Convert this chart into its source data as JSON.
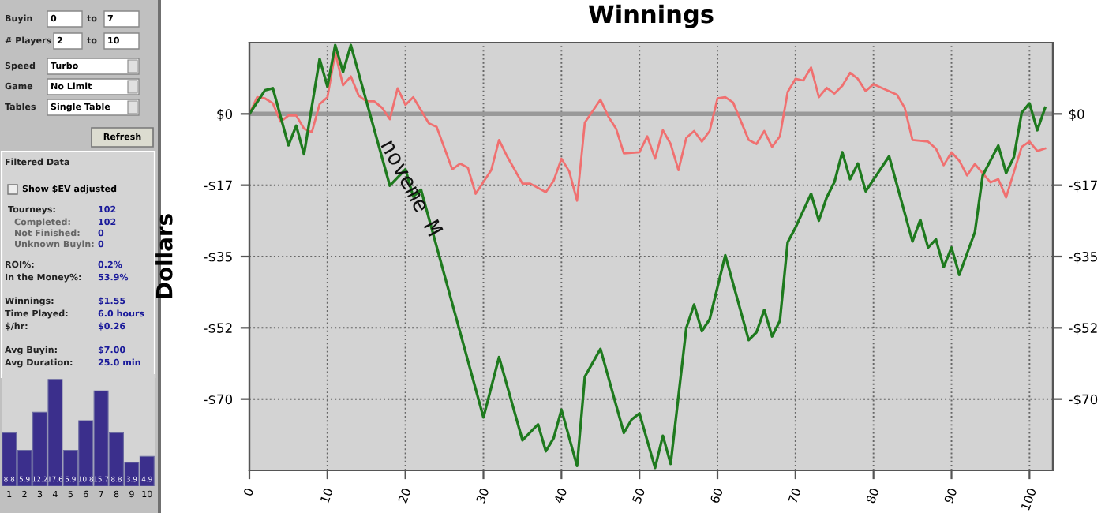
{
  "chart_data": [
    {
      "type": "other",
      "annotations": [
        "Buyin",
        "0",
        "to",
        "7",
        "# Players",
        "2",
        "to",
        "10",
        "Speed",
        "Turbo",
        "Game",
        "No Limit",
        "Tables",
        "Single Table",
        "Refresh",
        "Filtered Data",
        "Show $EV adjusted",
        "Tourneys:",
        "102",
        "Completed:",
        "102",
        "Not Finished:",
        "0",
        "Unknown Buyin:",
        "0",
        "ROI%:",
        "0.2%",
        "In the Money%:",
        "53.9%",
        "Winnings:",
        "$1.55",
        "Time Played:",
        "6.0 hours",
        "$/hr:",
        "$0.26",
        "Avg Buyin:",
        "$7.00",
        "Avg Duration:",
        "25.0 min"
      ]
    },
    {
      "type": "bar",
      "categories": [
        "1",
        "2",
        "3",
        "4",
        "5",
        "6",
        "7",
        "8",
        "9",
        "10"
      ],
      "values": [
        8.8,
        5.9,
        12.2,
        17.6,
        5.9,
        10.8,
        15.7,
        8.8,
        3.9,
        4.9
      ],
      "color": "#3b2f8c",
      "data_labels": true,
      "tick_labels": "x"
    },
    {
      "type": "line",
      "title": "Winnings",
      "ylabel": "Dollars",
      "annotations": [
        "noveme M"
      ],
      "xlim": [
        0,
        103
      ],
      "xticks": [
        0,
        10,
        20,
        30,
        40,
        50,
        60,
        70,
        80,
        90,
        100
      ],
      "ylim": [
        -87.5,
        17.5
      ],
      "yticks": [
        {
          "value": 0,
          "label": "$0"
        },
        {
          "value": -17.5,
          "label": "-$17"
        },
        {
          "value": -35,
          "label": "-$35"
        },
        {
          "value": -52.5,
          "label": "-$52"
        },
        {
          "value": -70,
          "label": "-$70"
        }
      ],
      "y2lim": [
        -87.5,
        17.5
      ],
      "y2ticks": [
        {
          "value": 0,
          "label": "$0"
        },
        {
          "value": -17.5,
          "label": "-$17"
        },
        {
          "value": -35,
          "label": "-$35"
        },
        {
          "value": -52.5,
          "label": "-$52"
        },
        {
          "value": -70,
          "label": "-$70"
        }
      ],
      "grid": true,
      "line_style": "solid",
      "ref_lines": [
        {
          "axis": "y",
          "value": 0,
          "label": null,
          "color": "#999999"
        }
      ],
      "series": [
        {
          "color": "#f07070",
          "x": [
            0,
            1,
            2,
            3,
            4,
            5,
            6,
            7,
            8,
            9,
            10,
            11,
            12,
            13,
            14,
            15,
            16,
            17,
            18,
            19,
            20,
            21,
            23,
            24,
            26,
            27,
            28,
            29,
            31,
            32,
            33,
            35,
            36,
            38,
            39,
            40,
            41,
            42,
            43,
            45,
            46,
            47,
            48,
            50,
            51,
            52,
            53,
            54,
            55,
            56,
            57,
            58,
            59,
            60,
            61,
            62,
            64,
            65,
            66,
            67,
            68,
            69,
            70,
            71,
            72,
            73,
            74,
            75,
            76,
            77,
            78,
            79,
            80,
            83,
            84,
            85,
            87,
            88,
            89,
            90,
            91,
            92,
            93,
            95,
            96,
            97,
            99,
            100,
            101,
            102
          ],
          "values": [
            0,
            4.1,
            3.8,
            2.6,
            -1.9,
            -0.4,
            -0.4,
            -3.6,
            -4.5,
            2.4,
            4.1,
            15,
            7,
            9.2,
            4.5,
            3.1,
            3.1,
            1.5,
            -1.3,
            6.3,
            2.2,
            4.1,
            -2.3,
            -3.2,
            -13.6,
            -12.2,
            -13.2,
            -19.6,
            -13.8,
            -6.4,
            -10.3,
            -17.1,
            -17.1,
            -19.2,
            -16.4,
            -11,
            -14.1,
            -21.3,
            -2.1,
            3.5,
            -0.6,
            -3.6,
            -9.7,
            -9.4,
            -5.5,
            -11,
            -4,
            -7.4,
            -13.8,
            -5.9,
            -4.2,
            -6.8,
            -4.2,
            3.8,
            4.1,
            2.8,
            -6.4,
            -7.4,
            -4.2,
            -8.1,
            -5.5,
            5.4,
            8.6,
            8.2,
            11.4,
            4.1,
            6.4,
            5,
            6.9,
            10.1,
            8.6,
            5.6,
            7.3,
            4.7,
            1.5,
            -6.4,
            -6.8,
            -8.5,
            -12.6,
            -9.4,
            -11.5,
            -15.1,
            -12.3,
            -16.8,
            -16,
            -20.5,
            -8.1,
            -6.8,
            -9.1,
            -8.5
          ]
        },
        {
          "color": "#1e7a1e",
          "x": [
            0,
            2,
            3,
            5,
            6,
            7,
            9,
            10,
            11,
            12,
            13,
            18,
            20,
            21,
            22,
            30,
            32,
            35,
            37,
            38,
            39,
            40,
            42,
            43,
            45,
            48,
            49,
            50,
            52,
            53,
            54,
            56,
            57,
            58,
            59,
            61,
            64,
            65,
            66,
            67,
            68,
            69,
            70,
            72,
            73,
            74,
            75,
            76,
            77,
            78,
            79,
            82,
            85,
            86,
            87,
            88,
            89,
            90,
            91,
            93,
            94,
            96,
            97,
            98,
            99,
            100,
            101,
            102
          ],
          "values": [
            0,
            5.8,
            6.3,
            -7.7,
            -2.9,
            -9.9,
            13.5,
            6.7,
            16.9,
            10.3,
            16.9,
            -17.6,
            -13.6,
            -20.3,
            -18.6,
            -74.5,
            -59.7,
            -80.1,
            -76.2,
            -82.8,
            -79.6,
            -72.6,
            -86.4,
            -64.5,
            -57.7,
            -78.3,
            -75,
            -73.5,
            -86.9,
            -79,
            -85.9,
            -52.6,
            -46.8,
            -53.3,
            -50.4,
            -34.7,
            -55.5,
            -53.6,
            -48.1,
            -54.6,
            -50.8,
            -31.5,
            -27.9,
            -19.6,
            -26.2,
            -20.5,
            -16.7,
            -9.4,
            -16,
            -12.2,
            -19,
            -10.4,
            -31.3,
            -26,
            -32.8,
            -30.8,
            -37.6,
            -32.8,
            -39.5,
            -29,
            -15.1,
            -7.8,
            -14.5,
            -10.6,
            0.3,
            2.6,
            -4,
            1.5
          ]
        }
      ]
    }
  ]
}
